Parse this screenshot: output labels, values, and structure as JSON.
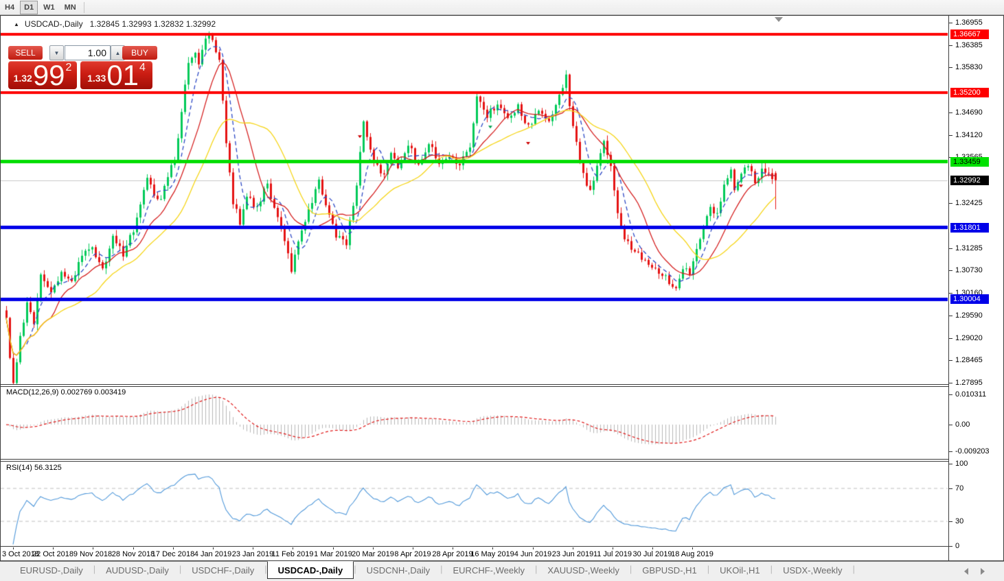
{
  "toolbar": {
    "timeframes": [
      {
        "label": "H4",
        "active": false
      },
      {
        "label": "D1",
        "active": true
      },
      {
        "label": "W1",
        "active": false
      },
      {
        "label": "MN",
        "active": false
      }
    ]
  },
  "chart_window": {
    "title": {
      "collapse_icon": "▲",
      "symbol": "USDCAD-,Daily",
      "quote": "1.32845 1.32993 1.32832 1.32992"
    },
    "trade_panel": {
      "sell_label": "SELL",
      "buy_label": "BUY",
      "volume": "1.00",
      "sell_price": {
        "prefix": "1.32",
        "big": "99",
        "sup": "2"
      },
      "buy_price": {
        "prefix": "1.33",
        "big": "01",
        "sup": "4"
      }
    }
  },
  "chart_data": {
    "type": "candlestick",
    "symbol": "USDCAD",
    "period": "Daily",
    "ohlc_display": {
      "open": "1.32845",
      "high": "1.32993",
      "low": "1.32832",
      "close": "1.32992"
    },
    "price_axis": {
      "top": 1.37107,
      "bottom": 1.27866,
      "regular_ticks": [
        "1.36955",
        "1.36385",
        "1.35830",
        "1.34690",
        "1.34120",
        "1.33565",
        "1.32425",
        "1.31285",
        "1.30730",
        "1.30160",
        "1.29590",
        "1.29020",
        "1.28465",
        "1.27895"
      ],
      "special_labels": [
        {
          "value": "1.36667",
          "bg": "#fe0000",
          "fg": "#ffffff"
        },
        {
          "value": "1.35200",
          "bg": "#fe0000",
          "fg": "#ffffff"
        },
        {
          "value": "1.33459",
          "bg": "#00e100",
          "fg": "#000000"
        },
        {
          "value": "1.32992",
          "bg": "#000000",
          "fg": "#ffffff"
        },
        {
          "value": "1.31801",
          "bg": "#0000e8",
          "fg": "#ffffff"
        },
        {
          "value": "1.30004",
          "bg": "#0000e8",
          "fg": "#ffffff"
        }
      ]
    },
    "horizontal_lines": [
      {
        "price": 1.36667,
        "color": "#fe0000",
        "width": 4
      },
      {
        "price": 1.352,
        "color": "#fe0000",
        "width": 4
      },
      {
        "price": 1.33459,
        "color": "#00dd00",
        "width": 5
      },
      {
        "price": 1.31801,
        "color": "#0000e8",
        "width": 5
      },
      {
        "price": 1.30004,
        "color": "#0000e8",
        "width": 5
      }
    ],
    "current_price_line": {
      "price": 1.32992,
      "color": "#c9c9c9",
      "width": 1
    },
    "x_axis": {
      "dates": [
        "3 Oct 2018",
        "22 Oct 2018",
        "9 Nov 2018",
        "28 Nov 2018",
        "17 Dec 2018",
        "4 Jan 2019",
        "23 Jan 2019",
        "11 Feb 2019",
        "1 Mar 2019",
        "20 Mar 2019",
        "8 Apr 2019",
        "28 Apr 2019",
        "16 May 2019",
        "4 Jun 2019",
        "23 Jun 2019",
        "11 Jul 2019",
        "30 Jul 2019",
        "18 Aug 2019"
      ]
    },
    "candles": {
      "count": 225,
      "bull_color": "#00ca58",
      "bear_color": "#e51212",
      "anchors": [
        [
          0,
          1.296
        ],
        [
          1,
          1.2845
        ],
        [
          2,
          1.2795
        ],
        [
          4,
          1.29
        ],
        [
          6,
          1.2985
        ],
        [
          8,
          1.2935
        ],
        [
          10,
          1.3065
        ],
        [
          13,
          1.3015
        ],
        [
          16,
          1.3065
        ],
        [
          19,
          1.304
        ],
        [
          22,
          1.311
        ],
        [
          25,
          1.313
        ],
        [
          28,
          1.307
        ],
        [
          31,
          1.3155
        ],
        [
          34,
          1.3115
        ],
        [
          37,
          1.3175
        ],
        [
          39,
          1.3245
        ],
        [
          41,
          1.3305
        ],
        [
          43,
          1.326
        ],
        [
          45,
          1.3248
        ],
        [
          47,
          1.331
        ],
        [
          49,
          1.335
        ],
        [
          51,
          1.3475
        ],
        [
          53,
          1.36
        ],
        [
          55,
          1.3625
        ],
        [
          56,
          1.359
        ],
        [
          58,
          1.366
        ],
        [
          60,
          1.3655
        ],
        [
          62,
          1.3595
        ],
        [
          64,
          1.339
        ],
        [
          66,
          1.3245
        ],
        [
          68,
          1.3195
        ],
        [
          70,
          1.326
        ],
        [
          73,
          1.3228
        ],
        [
          76,
          1.3292
        ],
        [
          78,
          1.3222
        ],
        [
          81,
          1.3152
        ],
        [
          83,
          1.3072
        ],
        [
          85,
          1.3152
        ],
        [
          88,
          1.3222
        ],
        [
          91,
          1.3298
        ],
        [
          93,
          1.3232
        ],
        [
          96,
          1.3162
        ],
        [
          99,
          1.3142
        ],
        [
          102,
          1.3292
        ],
        [
          104,
          1.3442
        ],
        [
          107,
          1.3342
        ],
        [
          110,
          1.3312
        ],
        [
          112,
          1.3362
        ],
        [
          114,
          1.3332
        ],
        [
          117,
          1.3392
        ],
        [
          120,
          1.3332
        ],
        [
          123,
          1.3392
        ],
        [
          126,
          1.3342
        ],
        [
          129,
          1.3362
        ],
        [
          132,
          1.3338
        ],
        [
          135,
          1.3382
        ],
        [
          137,
          1.3502
        ],
        [
          140,
          1.3462
        ],
        [
          143,
          1.3492
        ],
        [
          146,
          1.3452
        ],
        [
          149,
          1.3482
        ],
        [
          152,
          1.3432
        ],
        [
          155,
          1.3472
        ],
        [
          158,
          1.3442
        ],
        [
          161,
          1.3512
        ],
        [
          163,
          1.3562
        ],
        [
          164,
          1.3482
        ],
        [
          166,
          1.3392
        ],
        [
          168,
          1.3312
        ],
        [
          170,
          1.3272
        ],
        [
          172,
          1.3332
        ],
        [
          174,
          1.3392
        ],
        [
          176,
          1.3332
        ],
        [
          178,
          1.3222
        ],
        [
          180,
          1.3152
        ],
        [
          182,
          1.3132
        ],
        [
          184,
          1.3112
        ],
        [
          186,
          1.3102
        ],
        [
          188,
          1.3086
        ],
        [
          190,
          1.3072
        ],
        [
          192,
          1.3056
        ],
        [
          195,
          1.3022
        ],
        [
          197,
          1.3082
        ],
        [
          199,
          1.3062
        ],
        [
          201,
          1.3132
        ],
        [
          203,
          1.3182
        ],
        [
          205,
          1.3232
        ],
        [
          207,
          1.3212
        ],
        [
          209,
          1.3292
        ],
        [
          211,
          1.3332
        ],
        [
          212,
          1.3272
        ],
        [
          214,
          1.3312
        ],
        [
          216,
          1.3342
        ],
        [
          218,
          1.3292
        ],
        [
          220,
          1.3332
        ],
        [
          222,
          1.3312
        ],
        [
          224,
          1.3299
        ]
      ]
    },
    "moving_averages": [
      {
        "period": 6,
        "color": "#2b47c4",
        "dashed": true
      },
      {
        "period": 13,
        "color": "#d41c1c",
        "dashed": false
      },
      {
        "period": 26,
        "color": "#f5d413",
        "dashed": false
      }
    ],
    "arrows": [
      {
        "i": 103,
        "price": 1.3412,
        "color": "#cc0000"
      },
      {
        "i": 152,
        "price": 1.3395,
        "color": "#cc0000"
      },
      {
        "i": 214,
        "price": 1.3288,
        "color": "#cc0000"
      },
      {
        "i": 141,
        "price": 1.3436,
        "color": "#00a050"
      }
    ],
    "macd_panel": {
      "label": "MACD(12,26,9)",
      "values": "0.002769 0.003419",
      "axis_ticks": [
        {
          "text": "0.010311",
          "value": 0.010311
        },
        {
          "text": "0.00",
          "value": 0
        },
        {
          "text": "-0.009203",
          "value": -0.009203
        }
      ],
      "histogram_color": "#b6b6b6",
      "signal_color": "#e01616",
      "scale_max": 0.010311
    },
    "rsi_panel": {
      "label": "RSI(14)",
      "value": "56.3125",
      "axis_ticks": [
        100,
        70,
        30,
        0
      ],
      "levels": [
        70,
        30
      ],
      "line_color": "#4e97d9",
      "level_color": "#bdbdbd"
    }
  },
  "tab_bar": {
    "tabs": [
      {
        "label": "EURUSD-,Daily",
        "active": false
      },
      {
        "label": "AUDUSD-,Daily",
        "active": false
      },
      {
        "label": "USDCHF-,Daily",
        "active": false
      },
      {
        "label": "USDCAD-,Daily",
        "active": true
      },
      {
        "label": "USDCNH-,Daily",
        "active": false
      },
      {
        "label": "EURCHF-,Weekly",
        "active": false
      },
      {
        "label": "XAUUSD-,Weekly",
        "active": false
      },
      {
        "label": "GBPUSD-,H1",
        "active": false
      },
      {
        "label": "UKOil-,H1",
        "active": false
      },
      {
        "label": "USDX-,Weekly",
        "active": false
      }
    ]
  }
}
